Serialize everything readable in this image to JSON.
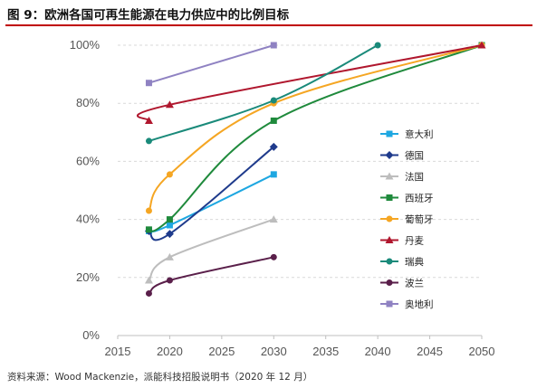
{
  "figure": {
    "title": "图 9：欧洲各国可再生能源在电力供应中的比例目标",
    "source": "资料来源：Wood Mackenzie，派能科技招股说明书（2020 年 12 月）"
  },
  "chart_data": {
    "type": "line",
    "title": "",
    "xlabel": "",
    "ylabel": "",
    "xlim": [
      2015,
      2050
    ],
    "ylim": [
      0,
      100
    ],
    "x_ticks": [
      "2015",
      "2020",
      "2025",
      "2030",
      "2035",
      "2040",
      "2045",
      "2050"
    ],
    "y_ticks": [
      "0%",
      "20%",
      "40%",
      "60%",
      "80%",
      "100%"
    ],
    "grid": "horizontal dashed",
    "legend_position": "right",
    "series": [
      {
        "name": "意大利",
        "color": "#1ea7e1",
        "marker": "square",
        "x": [
          2018,
          2020,
          2030
        ],
        "y": [
          36,
          38,
          55.5
        ]
      },
      {
        "name": "德国",
        "color": "#1f3b8c",
        "marker": "diamond",
        "x": [
          2018,
          2020,
          2030
        ],
        "y": [
          36,
          35,
          65
        ]
      },
      {
        "name": "法国",
        "color": "#bdbdbd",
        "marker": "triangle",
        "x": [
          2018,
          2020,
          2030
        ],
        "y": [
          19,
          27,
          40
        ]
      },
      {
        "name": "西班牙",
        "color": "#1f8a3c",
        "marker": "square",
        "x": [
          2018,
          2020,
          2030,
          2050
        ],
        "y": [
          36.5,
          40,
          74,
          100
        ]
      },
      {
        "name": "葡萄牙",
        "color": "#f5a623",
        "marker": "circle",
        "x": [
          2018,
          2020,
          2030,
          2050
        ],
        "y": [
          43,
          55.5,
          80,
          100
        ]
      },
      {
        "name": "丹麦",
        "color": "#b0172e",
        "marker": "triangle",
        "x": [
          2018,
          2020,
          2050
        ],
        "y": [
          74,
          79.5,
          100
        ]
      },
      {
        "name": "瑞典",
        "color": "#1a8a7a",
        "marker": "circle",
        "x": [
          2018,
          2030,
          2040
        ],
        "y": [
          67,
          81,
          100
        ]
      },
      {
        "name": "波兰",
        "color": "#5a1f4a",
        "marker": "circle",
        "x": [
          2018,
          2020,
          2030
        ],
        "y": [
          14.5,
          19,
          27
        ]
      },
      {
        "name": "奥地利",
        "color": "#8f82c2",
        "marker": "square",
        "x": [
          2018,
          2030
        ],
        "y": [
          87,
          100
        ]
      }
    ]
  }
}
